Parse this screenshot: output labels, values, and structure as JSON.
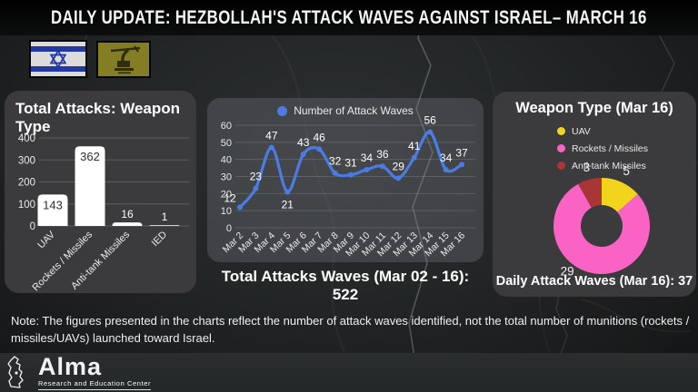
{
  "header": {
    "title": "DAILY UPDATE: HEZBOLLAH'S ATTACK WAVES AGAINST ISRAEL– MARCH 16"
  },
  "panels": {
    "bar": {
      "title": "Total Attacks: Weapon Type"
    },
    "line": {
      "total_text": "Total Attacks Waves (Mar 02 - 16): 522"
    },
    "pie": {
      "title": "Weapon Type (Mar 16)",
      "footer": "Daily Attack Waves (Mar 16): 37"
    }
  },
  "note": "Note: The figures presented in the charts reflect the number of attack waves identified, not the total number of munitions (rockets / missiles/UAVs) launched toward Israel.",
  "footer": {
    "brand": "Alma",
    "brand_sub": "Research and Education Center"
  },
  "colors": {
    "line_blue": "#4a7ce6",
    "pie_yellow": "#f2d41c",
    "pie_pink": "#fa63c3",
    "pie_red": "#a93636",
    "bar_white": "#ffffff",
    "panel_bg": "#3b3b3d"
  },
  "chart_data": [
    {
      "id": "total-attacks-by-weapon-type",
      "type": "bar",
      "title": "Total Attacks: Weapon Type",
      "categories": [
        "UAV",
        "Rockets / Missiles",
        "Anti-tank Missiles",
        "IED"
      ],
      "values": [
        143,
        362,
        16,
        1
      ],
      "ylim": [
        0,
        400
      ],
      "yticks": [
        0,
        100,
        200,
        300,
        400
      ],
      "bar_color": "#ffffff",
      "grid": true
    },
    {
      "id": "attack-waves-per-day",
      "type": "line",
      "legend": "Number of Attack Waves",
      "x": [
        "Mar 2",
        "Mar 3",
        "Mar 4",
        "Mar 5",
        "Mar 6",
        "Mar 7",
        "Mar 8",
        "Mar 9",
        "Mar 10",
        "Mar 11",
        "Mar 12",
        "Mar 13",
        "Mar 14",
        "Mar 15",
        "Mar 16"
      ],
      "values": [
        12,
        23,
        47,
        21,
        43,
        46,
        32,
        31,
        34,
        36,
        29,
        41,
        56,
        34,
        37
      ],
      "ylim": [
        0,
        60
      ],
      "yticks": [
        0,
        10,
        20,
        30,
        40,
        50,
        60
      ],
      "line_color": "#4a7ce6",
      "grid": true,
      "legend_position": "top",
      "total": 522
    },
    {
      "id": "weapon-type-mar-16",
      "type": "pie",
      "donut": true,
      "labels": [
        "UAV",
        "Rockets / Missiles",
        "Anti-tank Missiles"
      ],
      "values": [
        5,
        29,
        3
      ],
      "colors": [
        "#f2d41c",
        "#fa63c3",
        "#a93636"
      ],
      "legend_position": "top",
      "total": 37
    }
  ]
}
